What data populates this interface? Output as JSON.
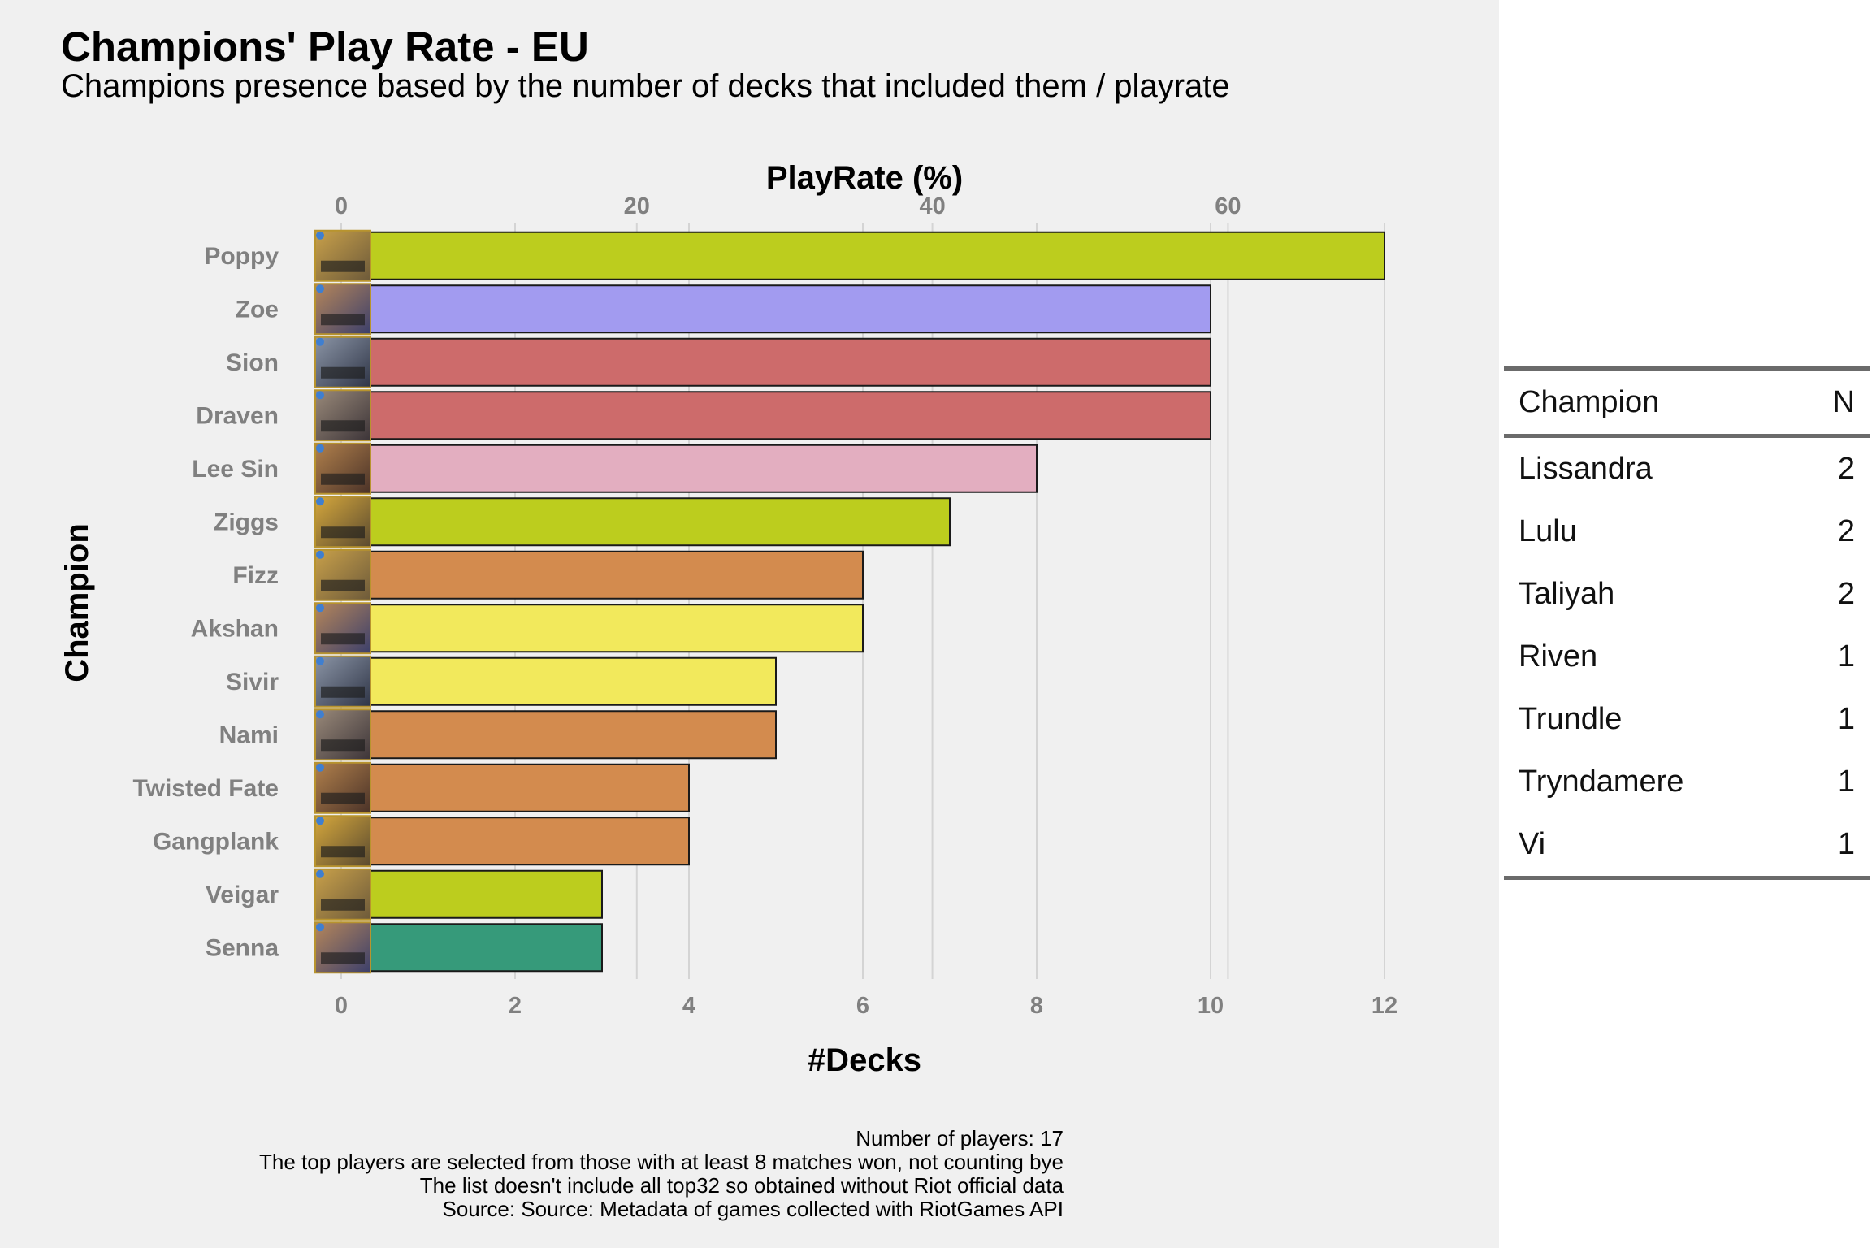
{
  "chart_data": {
    "type": "bar",
    "orientation": "horizontal",
    "title": "Champions' Play Rate - EU",
    "subtitle": "Champions presence based by the number of decks that included them / playrate",
    "xlabel": "#Decks",
    "x2label": "PlayRate (%)",
    "ylabel": "Champion",
    "xlim": [
      0,
      12
    ],
    "xticks": [
      0,
      2,
      4,
      6,
      8,
      10,
      12
    ],
    "x2ticks": [
      0,
      20,
      40,
      60
    ],
    "grid": true,
    "categories": [
      "Poppy",
      "Zoe",
      "Sion",
      "Draven",
      "Lee Sin",
      "Ziggs",
      "Fizz",
      "Akshan",
      "Sivir",
      "Nami",
      "Twisted Fate",
      "Gangplank",
      "Veigar",
      "Senna"
    ],
    "values": [
      12,
      10,
      10,
      10,
      8,
      7,
      6,
      6,
      5,
      5,
      4,
      4,
      3,
      3
    ],
    "bar_colors": [
      "#bccd1e",
      "#a29bf0",
      "#cd6b6b",
      "#cd6b6b",
      "#e3aec0",
      "#bccd1e",
      "#d38b4e",
      "#f2e95c",
      "#f2e95c",
      "#d38b4e",
      "#d38b4e",
      "#d38b4e",
      "#bccd1e",
      "#369a7a"
    ],
    "legend": "none"
  },
  "caption": [
    "Number of players: 17",
    "The top players are selected from those with at least 8 matches won, not counting bye",
    "The list doesn't include all top32 so obtained without Riot official data",
    "Source: Source: Metadata of games collected with RiotGames API"
  ],
  "table": {
    "headers": [
      "Champion",
      "N"
    ],
    "rows": [
      [
        "Lissandra",
        "2"
      ],
      [
        "Lulu",
        "2"
      ],
      [
        "Taliyah",
        "2"
      ],
      [
        "Riven",
        "1"
      ],
      [
        "Trundle",
        "1"
      ],
      [
        "Tryndamere",
        "1"
      ],
      [
        "Vi",
        "1"
      ]
    ]
  },
  "colors": {
    "panel_background": "#f0f0f0",
    "grid": "#d4d4d4",
    "tick_label": "#808080"
  }
}
